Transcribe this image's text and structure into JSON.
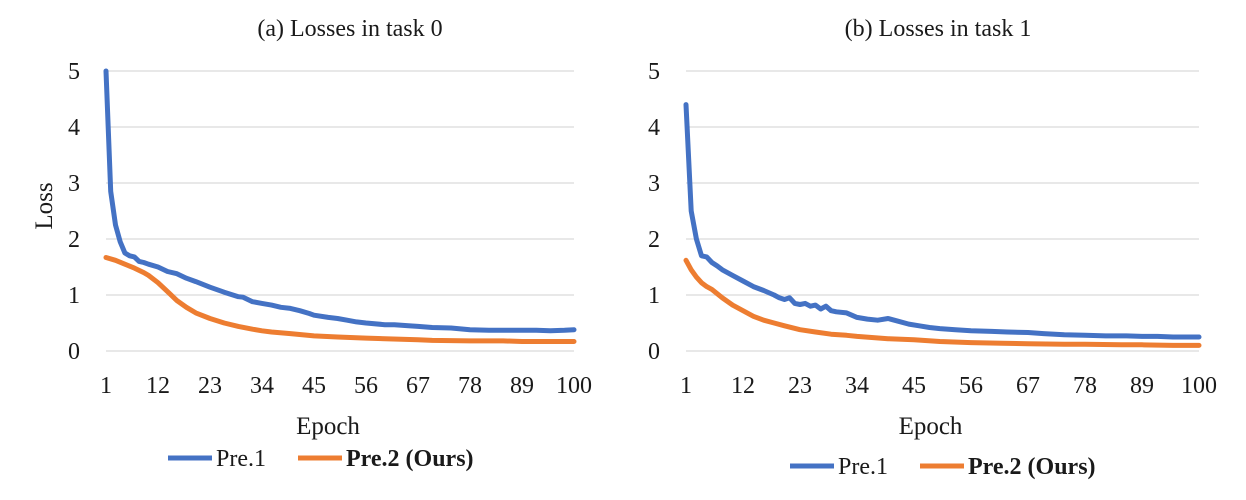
{
  "colors": {
    "pre1": "#4472C4",
    "pre2": "#ED7D31"
  },
  "chart_data": [
    {
      "type": "line",
      "title": "(a) Losses in task 0",
      "xlabel": "Epoch",
      "ylabel": "Loss",
      "xlim": [
        1,
        100
      ],
      "ylim": [
        0,
        5
      ],
      "xticks": [
        "1",
        "12",
        "23",
        "34",
        "45",
        "56",
        "67",
        "78",
        "89",
        "100"
      ],
      "yticks": [
        "0",
        "1",
        "2",
        "3",
        "4",
        "5"
      ],
      "grid": true,
      "legend_position": "bottom",
      "series": [
        {
          "name": "Pre.1",
          "x": [
            1,
            2,
            3,
            4,
            5,
            6,
            7,
            8,
            9,
            10,
            12,
            14,
            16,
            18,
            20,
            23,
            26,
            29,
            30,
            32,
            34,
            36,
            38,
            40,
            42,
            44,
            45,
            48,
            50,
            52,
            54,
            56,
            60,
            62,
            65,
            67,
            70,
            74,
            78,
            82,
            85,
            89,
            92,
            95,
            98,
            100
          ],
          "values": [
            5.0,
            2.85,
            2.25,
            1.95,
            1.75,
            1.7,
            1.68,
            1.6,
            1.58,
            1.55,
            1.5,
            1.42,
            1.38,
            1.3,
            1.24,
            1.14,
            1.05,
            0.97,
            0.96,
            0.88,
            0.85,
            0.82,
            0.78,
            0.76,
            0.72,
            0.67,
            0.64,
            0.6,
            0.58,
            0.55,
            0.52,
            0.5,
            0.47,
            0.47,
            0.45,
            0.44,
            0.42,
            0.41,
            0.38,
            0.37,
            0.37,
            0.37,
            0.37,
            0.36,
            0.37,
            0.38
          ]
        },
        {
          "name": "Pre.2 (Ours)",
          "x": [
            1,
            3,
            5,
            7,
            9,
            10,
            12,
            14,
            16,
            18,
            20,
            23,
            26,
            29,
            32,
            34,
            36,
            40,
            45,
            50,
            56,
            60,
            67,
            70,
            78,
            85,
            89,
            95,
            100
          ],
          "values": [
            1.67,
            1.62,
            1.55,
            1.48,
            1.4,
            1.35,
            1.22,
            1.06,
            0.9,
            0.78,
            0.68,
            0.58,
            0.5,
            0.44,
            0.39,
            0.36,
            0.34,
            0.31,
            0.27,
            0.25,
            0.23,
            0.22,
            0.2,
            0.19,
            0.18,
            0.18,
            0.17,
            0.17,
            0.17
          ]
        }
      ]
    },
    {
      "type": "line",
      "title": "(b) Losses in task 1",
      "xlabel": "Epoch",
      "ylabel": "",
      "xlim": [
        1,
        100
      ],
      "ylim": [
        0,
        5
      ],
      "xticks": [
        "1",
        "12",
        "23",
        "34",
        "45",
        "56",
        "67",
        "78",
        "89",
        "100"
      ],
      "yticks": [
        "0",
        "1",
        "2",
        "3",
        "4",
        "5"
      ],
      "grid": true,
      "legend_position": "bottom",
      "series": [
        {
          "name": "Pre.1",
          "x": [
            1,
            2,
            3,
            4,
            5,
            6,
            7,
            8,
            10,
            12,
            14,
            16,
            18,
            19,
            20,
            21,
            22,
            23,
            24,
            25,
            26,
            27,
            28,
            29,
            30,
            32,
            34,
            36,
            38,
            40,
            42,
            44,
            46,
            48,
            50,
            53,
            56,
            60,
            63,
            67,
            70,
            74,
            78,
            82,
            86,
            89,
            92,
            95,
            98,
            100
          ],
          "values": [
            4.4,
            2.5,
            2.0,
            1.7,
            1.68,
            1.58,
            1.52,
            1.45,
            1.35,
            1.25,
            1.15,
            1.08,
            1.0,
            0.95,
            0.92,
            0.95,
            0.85,
            0.83,
            0.85,
            0.8,
            0.82,
            0.75,
            0.8,
            0.72,
            0.7,
            0.68,
            0.6,
            0.57,
            0.55,
            0.58,
            0.53,
            0.48,
            0.45,
            0.42,
            0.4,
            0.38,
            0.36,
            0.35,
            0.34,
            0.33,
            0.31,
            0.29,
            0.28,
            0.27,
            0.27,
            0.26,
            0.26,
            0.25,
            0.25,
            0.25
          ]
        },
        {
          "name": "Pre.2 (Ours)",
          "x": [
            1,
            2,
            3,
            4,
            5,
            6,
            8,
            10,
            12,
            14,
            16,
            18,
            20,
            23,
            26,
            29,
            32,
            34,
            40,
            45,
            50,
            56,
            62,
            67,
            74,
            78,
            85,
            89,
            95,
            100
          ],
          "values": [
            1.62,
            1.45,
            1.32,
            1.22,
            1.15,
            1.1,
            0.95,
            0.82,
            0.72,
            0.62,
            0.55,
            0.5,
            0.45,
            0.38,
            0.34,
            0.3,
            0.28,
            0.26,
            0.22,
            0.2,
            0.17,
            0.15,
            0.14,
            0.13,
            0.12,
            0.12,
            0.11,
            0.11,
            0.1,
            0.1
          ]
        }
      ]
    }
  ]
}
